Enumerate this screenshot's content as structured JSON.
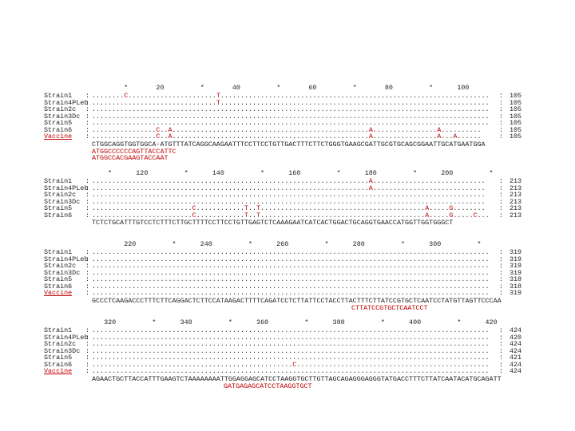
{
  "blocks": [
    {
      "ruler": "        *       20         *       40         *       60         *       80         *      100",
      "rows": [
        {
          "name": "Strain1",
          "seq": "........C......................T...................................................................",
          "count": "105"
        },
        {
          "name": "Strain4PLeb",
          "seq": "...............................T...................................................................",
          "count": "105"
        },
        {
          "name": "Strain2c",
          "seq": "...................................................................................................",
          "count": "105"
        },
        {
          "name": "Strain3Dc",
          "seq": "...................................................................................................",
          "count": "105"
        },
        {
          "name": "Strain5",
          "seq": "...................................................................................................",
          "count": "105"
        },
        {
          "name": "Strain6",
          "seq": "................C..A.................................................A................A..........",
          "count": "105"
        },
        {
          "name": "Vaccine",
          "seq": "................C..A.................................................A................A...A......",
          "count": "105"
        }
      ],
      "consensus": "CTGGCAGGTGGTGGCA-ATGTTTATCAGGCAAGAATTTCCTTCCTGTTGACTTTCTTCTGGGTGAAGCGATTGCGTGCAGCGGAATTGCATGAATGGA",
      "primers": [
        "ATGGCCCCCCAGTTACCATTC",
        "ATGGCCACGAAGTACCAAT"
      ]
    },
    {
      "ruler": "    *      120         *      140         *      160         *      180         *      200         *",
      "rows": [
        {
          "name": "Strain1",
          "seq": ".....................................................................A............................",
          "count": "213"
        },
        {
          "name": "Strain4PLeb",
          "seq": ".....................................................................A............................",
          "count": "213"
        },
        {
          "name": "Strain2c",
          "seq": "..................................................................................................",
          "count": "213"
        },
        {
          "name": "Strain3Dc",
          "seq": "..................................................................................................",
          "count": "213"
        },
        {
          "name": "Strain5",
          "seq": ".........................C............T..T.........................................A.....G........",
          "count": "213"
        },
        {
          "name": "Strain6",
          "seq": ".........................C............T..T.........................................A.....G.....C...",
          "count": "213"
        }
      ],
      "consensus": "TCTCTGCATTTGTCCTCTTTCTTGCTTTTCCTTCCTGTTGAGTCTCAAAGAATCATCACTGGACTGCAGGTGAACCATGGTTGGTGGGCT"
    },
    {
      "ruler": "        220         *      240         *      260         *      280         *      300         *",
      "rows": [
        {
          "name": "Strain1",
          "seq": "...................................................................................................",
          "count": "319"
        },
        {
          "name": "Strain4PLeb",
          "seq": "...................................................................................................",
          "count": "319"
        },
        {
          "name": "Strain2c",
          "seq": "...................................................................................................",
          "count": "319"
        },
        {
          "name": "Strain3Dc",
          "seq": "...................................................................................................",
          "count": "319"
        },
        {
          "name": "Strain5",
          "seq": "...................................................................................................",
          "count": "318"
        },
        {
          "name": "Strain6",
          "seq": "...................................................................................................",
          "count": "318"
        },
        {
          "name": "Vaccine",
          "seq": "...................................................................................................",
          "count": "319"
        }
      ],
      "consensus": "GCCCTCAAGACCCTTTCTTCAGGACTCTTCCATAAGACTTTTCAGATCCTCTTATTCCTACCTTACTTTCTTATCCGTGCTCAATCCTATGTTAGTTCCCAA",
      "primers": [
        "CTTATCCGTGCTCAATCCT"
      ]
    },
    {
      "ruler": "   320         *      340         *      360         *      380         *      400         *      420",
      "rows": [
        {
          "name": "Strain1",
          "seq": "...................................................................................................",
          "count": "424"
        },
        {
          "name": "Strain4PLeb",
          "seq": "...................................................................................................",
          "count": "420"
        },
        {
          "name": "Strain2c",
          "seq": "...................................................................................................",
          "count": "424"
        },
        {
          "name": "Strain3Dc",
          "seq": "...................................................................................................",
          "count": "424"
        },
        {
          "name": "Strain5",
          "seq": "...................................................................................................",
          "count": "421"
        },
        {
          "name": "Strain6",
          "seq": "..................................................C................................................",
          "count": "424"
        },
        {
          "name": "Vaccine",
          "seq": "...................................................................................................",
          "count": "424"
        }
      ],
      "consensus": "AGAACTGCTTACCATTTGAAGTCTAAAAAAAATTGGAGGAGCATCCTAAGGTGCTTGTTAGCAGAGGGAGGGTATGACCTTTCTTATCAATACATGCAGATT",
      "primers": [
        "GATGAGAGCATCCTAAGGTGCT"
      ]
    }
  ]
}
